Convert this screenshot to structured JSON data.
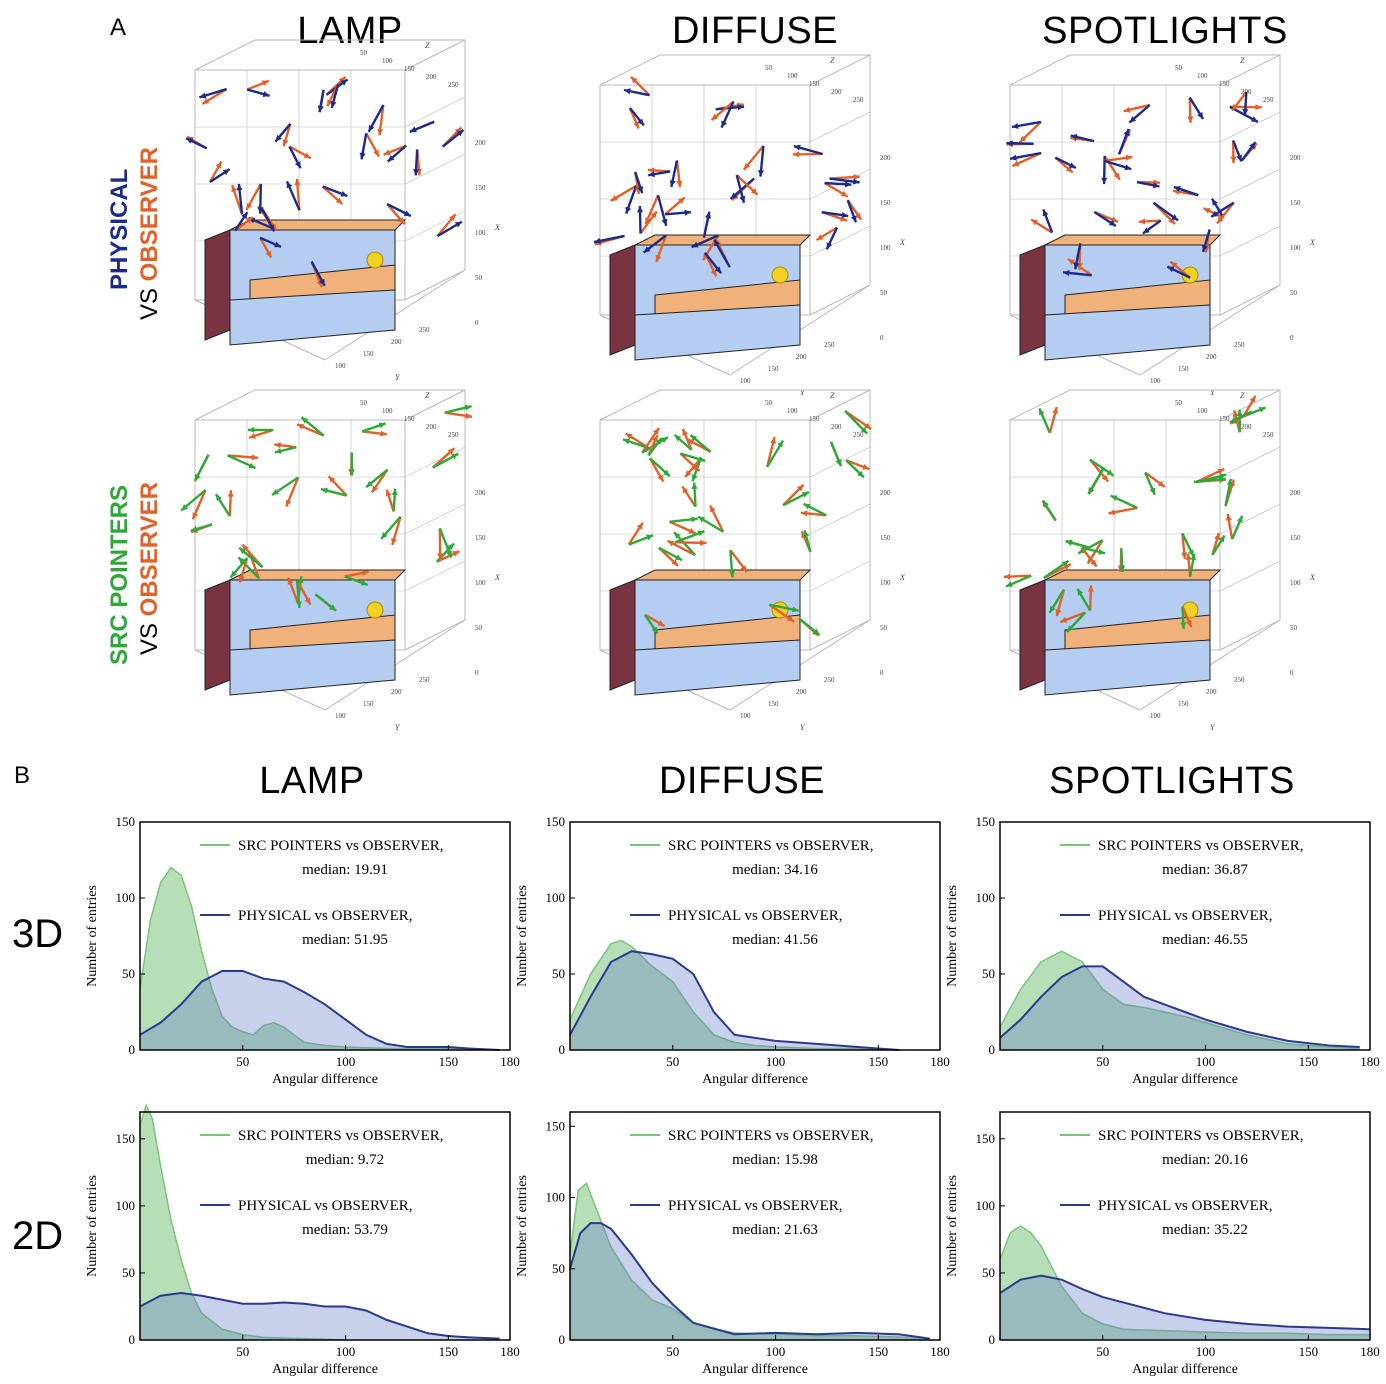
{
  "panel_a": {
    "letter": "A",
    "columns": [
      "LAMP",
      "DIFFUSE",
      "SPOTLIGHTS"
    ],
    "row1": {
      "part1": "PHYSICAL",
      "part2": "VS",
      "part3": "OBSERVER"
    },
    "row2": {
      "part1": "SRC POINTERS",
      "part2": "VS",
      "part3": "OBSERVER"
    },
    "axis_letters": {
      "x": "X",
      "y": "Y",
      "z": "Z"
    },
    "colors": {
      "physical": "#1c2a8c",
      "observer": "#e0622a",
      "src": "#2fa83a",
      "sofa_body": "#b4cdf0",
      "sofa_seat": "#f0b27a",
      "sofa_side": "#7a3340"
    }
  },
  "panel_b": {
    "letter": "B",
    "columns": [
      "LAMP",
      "DIFFUSE",
      "SPOTLIGHTS"
    ],
    "rows": [
      "3D",
      "2D"
    ]
  },
  "chart_data": [
    {
      "type": "area",
      "panel": "3D LAMP",
      "xlabel": "Angular difference",
      "ylabel": "Number of entries",
      "xlim": [
        0,
        180
      ],
      "ylim": [
        0,
        150
      ],
      "xticks": [
        50,
        100,
        150,
        180
      ],
      "yticks": [
        0,
        50,
        100,
        150
      ],
      "series": [
        {
          "name": "SRC POINTERS vs OBSERVER,",
          "median_label": "median:  19.91",
          "color": "#7cc47c",
          "x": [
            0,
            5,
            10,
            15,
            20,
            25,
            30,
            35,
            40,
            45,
            50,
            55,
            60,
            65,
            70,
            75,
            80,
            90,
            100,
            120,
            140,
            160,
            175
          ],
          "values": [
            40,
            85,
            110,
            120,
            115,
            95,
            65,
            40,
            22,
            15,
            12,
            10,
            16,
            18,
            15,
            10,
            5,
            3,
            2,
            1,
            1,
            1,
            0
          ]
        },
        {
          "name": "PHYSICAL vs OBSERVER,",
          "median_label": "median:  51.95",
          "color": "#2a3a8c",
          "x": [
            0,
            10,
            20,
            30,
            40,
            50,
            60,
            70,
            80,
            90,
            100,
            110,
            120,
            130,
            140,
            150,
            160,
            175
          ],
          "values": [
            10,
            18,
            30,
            45,
            52,
            52,
            47,
            45,
            38,
            30,
            20,
            10,
            4,
            2,
            2,
            2,
            1,
            0
          ]
        }
      ]
    },
    {
      "type": "area",
      "panel": "3D DIFFUSE",
      "xlabel": "Angular difference",
      "ylabel": "Number of entries",
      "xlim": [
        0,
        180
      ],
      "ylim": [
        0,
        150
      ],
      "xticks": [
        50,
        100,
        150,
        180
      ],
      "yticks": [
        0,
        50,
        100,
        150
      ],
      "series": [
        {
          "name": "SRC POINTERS vs OBSERVER,",
          "median_label": "median:  34.16",
          "color": "#7cc47c",
          "x": [
            0,
            10,
            20,
            25,
            30,
            40,
            50,
            60,
            70,
            80,
            90,
            100,
            120,
            140,
            160
          ],
          "values": [
            20,
            50,
            70,
            72,
            68,
            55,
            45,
            25,
            10,
            5,
            3,
            2,
            1,
            1,
            0
          ]
        },
        {
          "name": "PHYSICAL vs OBSERVER,",
          "median_label": "median:  41.56",
          "color": "#2a3a8c",
          "x": [
            0,
            10,
            20,
            30,
            40,
            50,
            60,
            70,
            80,
            90,
            100,
            120,
            140,
            160
          ],
          "values": [
            10,
            35,
            58,
            65,
            63,
            60,
            50,
            25,
            10,
            8,
            6,
            4,
            2,
            0
          ]
        }
      ]
    },
    {
      "type": "area",
      "panel": "3D SPOTLIGHTS",
      "xlabel": "Angular difference",
      "ylabel": "Number of entries",
      "xlim": [
        0,
        180
      ],
      "ylim": [
        0,
        150
      ],
      "xticks": [
        50,
        100,
        150,
        180
      ],
      "yticks": [
        0,
        50,
        100,
        150
      ],
      "series": [
        {
          "name": "SRC POINTERS vs OBSERVER,",
          "median_label": "median:  36.87",
          "color": "#7cc47c",
          "x": [
            0,
            10,
            20,
            30,
            40,
            50,
            60,
            70,
            80,
            90,
            100,
            120,
            140,
            160,
            175
          ],
          "values": [
            15,
            40,
            58,
            65,
            58,
            40,
            30,
            28,
            25,
            22,
            18,
            10,
            4,
            2,
            1
          ]
        },
        {
          "name": "PHYSICAL vs OBSERVER,",
          "median_label": "median:  46.55",
          "color": "#2a3a8c",
          "x": [
            0,
            10,
            20,
            30,
            40,
            50,
            60,
            70,
            80,
            90,
            100,
            120,
            140,
            160,
            175
          ],
          "values": [
            8,
            20,
            35,
            48,
            55,
            55,
            45,
            35,
            30,
            25,
            20,
            12,
            6,
            3,
            2
          ]
        }
      ]
    },
    {
      "type": "area",
      "panel": "2D LAMP",
      "xlabel": "Angular difference",
      "ylabel": "Number of entries",
      "xlim": [
        0,
        180
      ],
      "ylim": [
        0,
        170
      ],
      "xticks": [
        50,
        100,
        150,
        180
      ],
      "yticks": [
        0,
        50,
        100,
        150
      ],
      "series": [
        {
          "name": "SRC POINTERS vs OBSERVER,",
          "median_label": "median:  9.72",
          "color": "#7cc47c",
          "x": [
            0,
            3,
            6,
            10,
            15,
            20,
            25,
            30,
            40,
            50,
            60,
            80,
            100
          ],
          "values": [
            160,
            175,
            165,
            130,
            90,
            60,
            35,
            20,
            8,
            4,
            2,
            1,
            0
          ]
        },
        {
          "name": "PHYSICAL vs OBSERVER,",
          "median_label": "median:  53.79",
          "color": "#2a3a8c",
          "x": [
            0,
            10,
            20,
            30,
            40,
            50,
            60,
            70,
            80,
            90,
            100,
            110,
            120,
            130,
            140,
            150,
            160,
            175
          ],
          "values": [
            25,
            33,
            35,
            33,
            30,
            27,
            27,
            28,
            27,
            25,
            25,
            22,
            15,
            10,
            5,
            3,
            2,
            1
          ]
        }
      ]
    },
    {
      "type": "area",
      "panel": "2D DIFFUSE",
      "xlabel": "Angular difference",
      "ylabel": "Number of entries",
      "xlim": [
        0,
        180
      ],
      "ylim": [
        0,
        160
      ],
      "xticks": [
        50,
        100,
        150,
        180
      ],
      "yticks": [
        0,
        50,
        100,
        150
      ],
      "series": [
        {
          "name": "SRC POINTERS vs OBSERVER,",
          "median_label": "median:  15.98",
          "color": "#7cc47c",
          "x": [
            0,
            4,
            8,
            12,
            16,
            20,
            30,
            40,
            50,
            60,
            70,
            80,
            100,
            120,
            140,
            160,
            175
          ],
          "values": [
            60,
            105,
            110,
            95,
            80,
            65,
            42,
            28,
            22,
            12,
            8,
            5,
            4,
            3,
            3,
            2,
            1
          ]
        },
        {
          "name": "PHYSICAL vs OBSERVER,",
          "median_label": "median:  21.63",
          "color": "#2a3a8c",
          "x": [
            0,
            5,
            10,
            15,
            20,
            30,
            40,
            50,
            60,
            70,
            80,
            100,
            120,
            140,
            160,
            175
          ],
          "values": [
            50,
            75,
            82,
            82,
            78,
            60,
            40,
            25,
            12,
            8,
            4,
            5,
            4,
            5,
            4,
            1
          ]
        }
      ]
    },
    {
      "type": "area",
      "panel": "2D SPOTLIGHTS",
      "xlabel": "Angular difference",
      "ylabel": "Number of entries",
      "xlim": [
        0,
        180
      ],
      "ylim": [
        0,
        170
      ],
      "xticks": [
        50,
        100,
        150,
        180
      ],
      "yticks": [
        0,
        50,
        100,
        150
      ],
      "series": [
        {
          "name": "SRC POINTERS vs OBSERVER,",
          "median_label": "median:  20.16",
          "color": "#7cc47c",
          "x": [
            0,
            5,
            10,
            15,
            20,
            30,
            40,
            50,
            60,
            80,
            100,
            120,
            140,
            160,
            180
          ],
          "values": [
            60,
            80,
            85,
            80,
            70,
            40,
            20,
            12,
            8,
            7,
            6,
            5,
            5,
            4,
            4
          ]
        },
        {
          "name": "PHYSICAL vs OBSERVER,",
          "median_label": "median:  35.22",
          "color": "#2a3a8c",
          "x": [
            0,
            10,
            20,
            30,
            40,
            50,
            60,
            80,
            100,
            120,
            140,
            160,
            180
          ],
          "values": [
            35,
            45,
            48,
            45,
            38,
            32,
            28,
            20,
            15,
            12,
            10,
            9,
            8
          ]
        }
      ]
    }
  ]
}
